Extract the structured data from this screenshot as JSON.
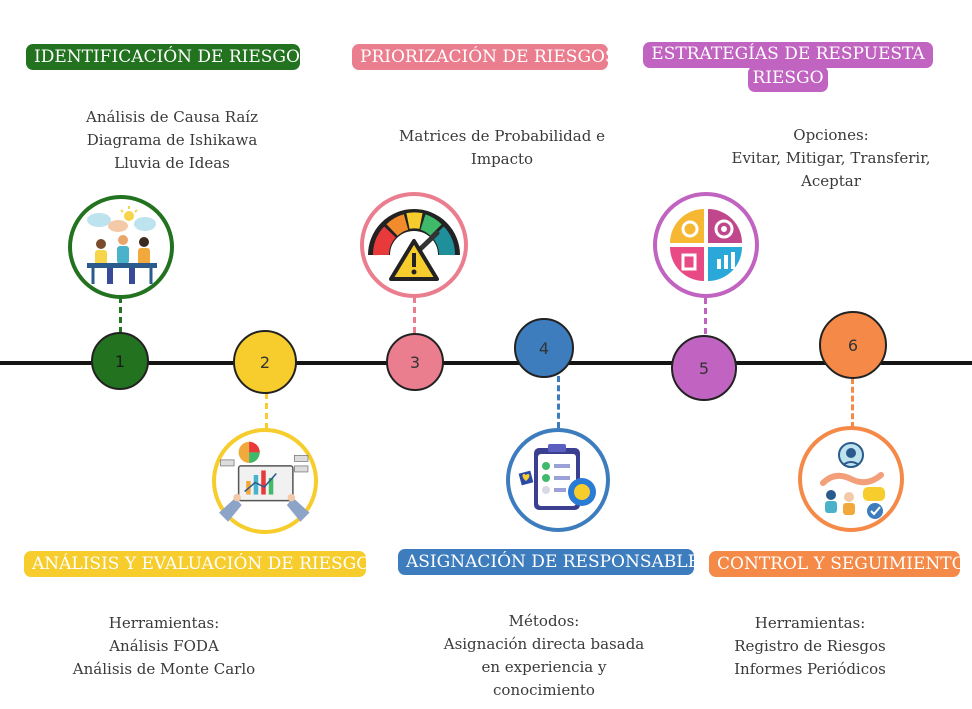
{
  "colors": {
    "green": "#22721f",
    "yellow": "#f6cd2c",
    "pink": "#ea7e8f",
    "blue": "#3e7dbd",
    "purple": "#c063c1",
    "orange": "#f58a48"
  },
  "steps": [
    {
      "number": "1",
      "title": "IDENTIFICACIÓN DE RIESGOS",
      "lines": [
        "Análisis de Causa Raíz",
        "Diagrama de Ishikawa",
        "Lluvia de Ideas"
      ],
      "icon": "brainstorm-meeting-icon"
    },
    {
      "number": "2",
      "title": "ANÁLISIS Y EVALUACIÓN DE RIESGOS",
      "lines": [
        "Herramientas:",
        "Análisis FODA",
        "Análisis de Monte Carlo"
      ],
      "icon": "data-analysis-tablet-icon"
    },
    {
      "number": "3",
      "title": "PRIORIZACIÓN DE RIESGOS",
      "lines": [
        "Matrices de Probabilidad e",
        "Impacto"
      ],
      "icon": "risk-gauge-warning-icon"
    },
    {
      "number": "4",
      "title": "ASIGNACIÓN DE RESPONSABLES",
      "lines": [
        "Métodos:",
        "Asignación directa basada",
        "en experiencia y",
        "conocimiento"
      ],
      "icon": "checklist-clipboard-icon"
    },
    {
      "number": "5",
      "title_lines": [
        "ESTRATEGÍAS DE RESPUESTA AL",
        "RIESGO"
      ],
      "lines": [
        "Opciones:",
        "Evitar, Mitigar, Transferir,",
        "Aceptar"
      ],
      "icon": "strategy-quadrant-icon"
    },
    {
      "number": "6",
      "title": "CONTROL Y SEGUIMIENTO",
      "lines": [
        "Herramientas:",
        "Registro de Riesgos",
        "Informes Periódicos"
      ],
      "icon": "monitoring-team-icon"
    }
  ]
}
